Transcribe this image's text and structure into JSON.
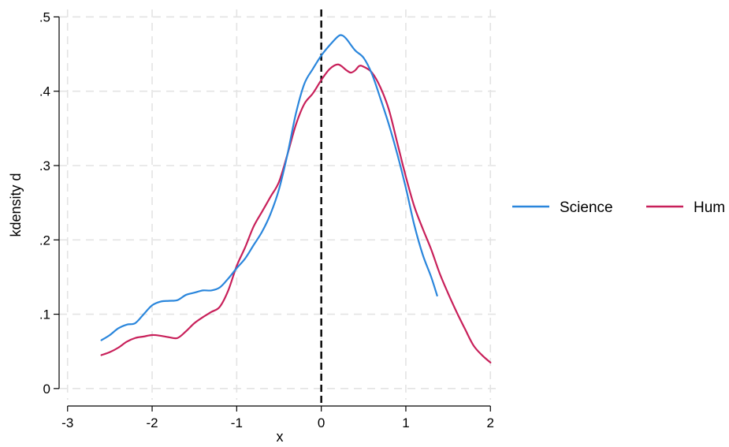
{
  "chart_data": {
    "type": "line",
    "title": "",
    "xlabel": "x",
    "ylabel": "kdensity d",
    "xlim": [
      -3.1,
      2.1
    ],
    "ylim": [
      -0.015,
      0.51
    ],
    "x_ticks": [
      -3,
      -2,
      -1,
      0,
      1,
      2
    ],
    "x_tick_labels": [
      "-3",
      "-2",
      "-1",
      "0",
      "1",
      "2"
    ],
    "y_ticks": [
      0,
      0.1,
      0.2,
      0.3,
      0.4,
      0.5
    ],
    "y_tick_labels": [
      "0",
      ".1",
      ".2",
      ".3",
      ".4",
      ".5"
    ],
    "grid": true,
    "reference_line": {
      "x": 0,
      "style": "dashed",
      "color": "#000000"
    },
    "legend_position": "right",
    "series": [
      {
        "name": "Science",
        "color": "#2a86dc",
        "points": [
          [
            -2.6,
            0.065
          ],
          [
            -2.5,
            0.072
          ],
          [
            -2.4,
            0.081
          ],
          [
            -2.3,
            0.086
          ],
          [
            -2.2,
            0.088
          ],
          [
            -2.1,
            0.1
          ],
          [
            -2.0,
            0.112
          ],
          [
            -1.9,
            0.117
          ],
          [
            -1.8,
            0.118
          ],
          [
            -1.7,
            0.119
          ],
          [
            -1.6,
            0.126
          ],
          [
            -1.5,
            0.129
          ],
          [
            -1.4,
            0.132
          ],
          [
            -1.3,
            0.132
          ],
          [
            -1.2,
            0.136
          ],
          [
            -1.1,
            0.148
          ],
          [
            -1.0,
            0.162
          ],
          [
            -0.9,
            0.175
          ],
          [
            -0.8,
            0.193
          ],
          [
            -0.7,
            0.211
          ],
          [
            -0.6,
            0.235
          ],
          [
            -0.5,
            0.268
          ],
          [
            -0.4,
            0.315
          ],
          [
            -0.3,
            0.37
          ],
          [
            -0.2,
            0.41
          ],
          [
            -0.1,
            0.43
          ],
          [
            0.0,
            0.448
          ],
          [
            0.1,
            0.462
          ],
          [
            0.2,
            0.474
          ],
          [
            0.25,
            0.475
          ],
          [
            0.3,
            0.47
          ],
          [
            0.4,
            0.455
          ],
          [
            0.5,
            0.445
          ],
          [
            0.6,
            0.423
          ],
          [
            0.7,
            0.39
          ],
          [
            0.8,
            0.355
          ],
          [
            0.9,
            0.315
          ],
          [
            1.0,
            0.27
          ],
          [
            1.1,
            0.22
          ],
          [
            1.2,
            0.18
          ],
          [
            1.3,
            0.15
          ],
          [
            1.37,
            0.125
          ]
        ]
      },
      {
        "name": "Hum",
        "color": "#c8205a",
        "points": [
          [
            -2.6,
            0.045
          ],
          [
            -2.5,
            0.049
          ],
          [
            -2.4,
            0.055
          ],
          [
            -2.3,
            0.063
          ],
          [
            -2.2,
            0.068
          ],
          [
            -2.1,
            0.07
          ],
          [
            -2.0,
            0.072
          ],
          [
            -1.9,
            0.071
          ],
          [
            -1.8,
            0.069
          ],
          [
            -1.7,
            0.068
          ],
          [
            -1.6,
            0.077
          ],
          [
            -1.5,
            0.088
          ],
          [
            -1.4,
            0.096
          ],
          [
            -1.3,
            0.103
          ],
          [
            -1.2,
            0.11
          ],
          [
            -1.1,
            0.132
          ],
          [
            -1.0,
            0.165
          ],
          [
            -0.9,
            0.19
          ],
          [
            -0.8,
            0.218
          ],
          [
            -0.7,
            0.238
          ],
          [
            -0.6,
            0.258
          ],
          [
            -0.5,
            0.278
          ],
          [
            -0.4,
            0.315
          ],
          [
            -0.3,
            0.355
          ],
          [
            -0.2,
            0.383
          ],
          [
            -0.1,
            0.397
          ],
          [
            0.0,
            0.415
          ],
          [
            0.1,
            0.43
          ],
          [
            0.2,
            0.436
          ],
          [
            0.3,
            0.428
          ],
          [
            0.35,
            0.425
          ],
          [
            0.4,
            0.428
          ],
          [
            0.45,
            0.434
          ],
          [
            0.5,
            0.433
          ],
          [
            0.6,
            0.425
          ],
          [
            0.7,
            0.405
          ],
          [
            0.8,
            0.375
          ],
          [
            0.9,
            0.33
          ],
          [
            1.0,
            0.285
          ],
          [
            1.1,
            0.245
          ],
          [
            1.2,
            0.215
          ],
          [
            1.3,
            0.187
          ],
          [
            1.4,
            0.155
          ],
          [
            1.5,
            0.128
          ],
          [
            1.6,
            0.103
          ],
          [
            1.7,
            0.08
          ],
          [
            1.8,
            0.058
          ],
          [
            1.9,
            0.045
          ],
          [
            2.0,
            0.035
          ]
        ]
      }
    ]
  }
}
